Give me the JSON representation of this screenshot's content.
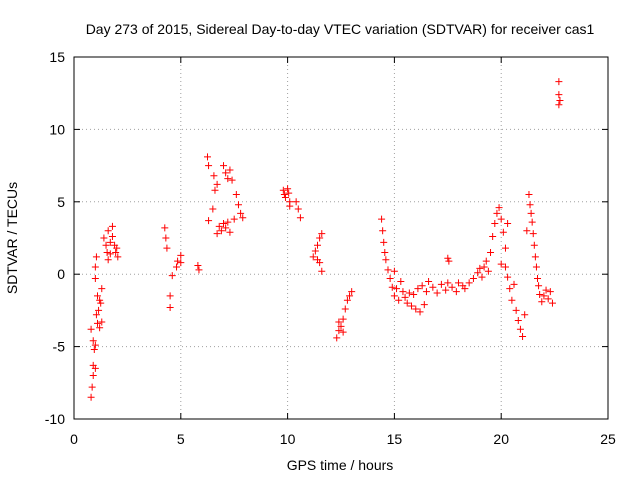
{
  "chart_data": {
    "type": "scatter",
    "title": "Day 273 of 2015, Sidereal Day-to-day VTEC variation (SDTVAR) for receiver cas1",
    "xlabel": "GPS time / hours",
    "ylabel": "SDTVAR / TECUs",
    "xlim": [
      0,
      25
    ],
    "ylim": [
      -10,
      15
    ],
    "xticks": [
      0,
      5,
      10,
      15,
      20,
      25
    ],
    "yticks": [
      -10,
      -5,
      0,
      5,
      10,
      15
    ],
    "xtick_labels": [
      "0",
      "5",
      "10",
      "15",
      "20",
      "25"
    ],
    "ytick_labels": [
      "-10",
      "-5",
      "0",
      "5",
      "10",
      "15"
    ],
    "grid": true,
    "marker": "+",
    "series": [
      {
        "name": "SDTVAR",
        "color": "#ff0000",
        "points": [
          [
            0.8,
            -3.8
          ],
          [
            0.8,
            -8.5
          ],
          [
            0.85,
            -7.8
          ],
          [
            0.9,
            -7.0
          ],
          [
            0.9,
            -6.3
          ],
          [
            0.95,
            -5.2
          ],
          [
            0.9,
            -4.6
          ],
          [
            1.0,
            -6.5
          ],
          [
            1.0,
            -4.9
          ],
          [
            1.0,
            0.5
          ],
          [
            1.0,
            -0.3
          ],
          [
            1.05,
            1.2
          ],
          [
            1.05,
            -2.8
          ],
          [
            1.1,
            -1.5
          ],
          [
            1.1,
            -3.4
          ],
          [
            1.15,
            -2.5
          ],
          [
            1.2,
            -1.8
          ],
          [
            1.2,
            -3.7
          ],
          [
            1.25,
            -2.0
          ],
          [
            1.3,
            -1.0
          ],
          [
            1.3,
            -3.3
          ],
          [
            1.4,
            2.5
          ],
          [
            1.5,
            2.0
          ],
          [
            1.55,
            1.5
          ],
          [
            1.6,
            1.0
          ],
          [
            1.6,
            3.0
          ],
          [
            1.7,
            2.2
          ],
          [
            1.7,
            1.4
          ],
          [
            1.8,
            3.3
          ],
          [
            1.8,
            2.6
          ],
          [
            1.9,
            2.0
          ],
          [
            1.95,
            1.5
          ],
          [
            2.0,
            1.8
          ],
          [
            2.05,
            1.2
          ],
          [
            4.25,
            3.2
          ],
          [
            4.3,
            2.5
          ],
          [
            4.35,
            1.8
          ],
          [
            4.5,
            -1.5
          ],
          [
            4.5,
            -2.3
          ],
          [
            4.6,
            -0.1
          ],
          [
            4.8,
            0.5
          ],
          [
            4.85,
            0.9
          ],
          [
            5.0,
            1.3
          ],
          [
            5.0,
            0.8
          ],
          [
            5.8,
            0.6
          ],
          [
            5.85,
            0.3
          ],
          [
            6.25,
            8.1
          ],
          [
            6.3,
            7.5
          ],
          [
            6.3,
            3.7
          ],
          [
            6.5,
            4.5
          ],
          [
            6.55,
            6.8
          ],
          [
            6.6,
            5.8
          ],
          [
            6.7,
            6.2
          ],
          [
            6.7,
            2.8
          ],
          [
            6.8,
            3.3
          ],
          [
            6.9,
            3.0
          ],
          [
            7.0,
            3.5
          ],
          [
            7.0,
            7.5
          ],
          [
            7.1,
            7.0
          ],
          [
            7.1,
            3.2
          ],
          [
            7.2,
            6.6
          ],
          [
            7.2,
            3.6
          ],
          [
            7.3,
            7.2
          ],
          [
            7.3,
            2.9
          ],
          [
            7.4,
            6.5
          ],
          [
            7.5,
            3.8
          ],
          [
            7.6,
            5.5
          ],
          [
            7.7,
            4.8
          ],
          [
            7.8,
            4.2
          ],
          [
            7.9,
            3.9
          ],
          [
            9.8,
            5.8
          ],
          [
            9.85,
            5.5
          ],
          [
            9.9,
            5.3
          ],
          [
            10.0,
            5.9
          ],
          [
            10.05,
            5.6
          ],
          [
            10.1,
            5.0
          ],
          [
            10.1,
            4.7
          ],
          [
            10.4,
            5.0
          ],
          [
            10.5,
            4.5
          ],
          [
            10.6,
            3.9
          ],
          [
            11.2,
            1.2
          ],
          [
            11.3,
            1.6
          ],
          [
            11.4,
            2.0
          ],
          [
            11.4,
            1.0
          ],
          [
            11.5,
            2.5
          ],
          [
            11.5,
            0.8
          ],
          [
            11.6,
            2.8
          ],
          [
            11.6,
            0.2
          ],
          [
            12.3,
            -4.4
          ],
          [
            12.4,
            -3.9
          ],
          [
            12.4,
            -3.3
          ],
          [
            12.5,
            -3.6
          ],
          [
            12.6,
            -4.0
          ],
          [
            12.6,
            -3.1
          ],
          [
            12.7,
            -2.4
          ],
          [
            12.8,
            -1.8
          ],
          [
            12.9,
            -1.5
          ],
          [
            13.0,
            -1.2
          ],
          [
            14.4,
            3.8
          ],
          [
            14.45,
            3.0
          ],
          [
            14.5,
            2.2
          ],
          [
            14.55,
            1.5
          ],
          [
            14.6,
            1.0
          ],
          [
            14.7,
            0.3
          ],
          [
            14.8,
            -0.3
          ],
          [
            14.9,
            -0.9
          ],
          [
            15.0,
            -1.5
          ],
          [
            15.0,
            0.2
          ],
          [
            15.1,
            -1.0
          ],
          [
            15.2,
            -1.8
          ],
          [
            15.3,
            -0.5
          ],
          [
            15.4,
            -1.2
          ],
          [
            15.5,
            -1.6
          ],
          [
            15.6,
            -2.0
          ],
          [
            15.7,
            -1.3
          ],
          [
            15.8,
            -2.2
          ],
          [
            15.9,
            -1.4
          ],
          [
            16.0,
            -2.4
          ],
          [
            16.1,
            -1.0
          ],
          [
            16.2,
            -2.6
          ],
          [
            16.3,
            -0.8
          ],
          [
            16.4,
            -2.1
          ],
          [
            16.5,
            -1.2
          ],
          [
            16.6,
            -0.5
          ],
          [
            16.8,
            -0.9
          ],
          [
            17.0,
            -1.3
          ],
          [
            17.2,
            -0.7
          ],
          [
            17.4,
            -1.1
          ],
          [
            17.5,
            -0.6
          ],
          [
            17.7,
            -0.9
          ],
          [
            17.9,
            -1.2
          ],
          [
            18.0,
            -0.6
          ],
          [
            18.2,
            -0.8
          ],
          [
            18.3,
            -1.0
          ],
          [
            18.5,
            -0.6
          ],
          [
            17.5,
            1.1
          ],
          [
            17.55,
            0.9
          ],
          [
            18.7,
            -0.3
          ],
          [
            18.9,
            0.1
          ],
          [
            19.0,
            0.4
          ],
          [
            19.1,
            -0.2
          ],
          [
            19.2,
            0.5
          ],
          [
            19.3,
            0.9
          ],
          [
            19.4,
            0.2
          ],
          [
            19.5,
            1.5
          ],
          [
            19.6,
            2.6
          ],
          [
            19.7,
            3.5
          ],
          [
            19.8,
            4.2
          ],
          [
            19.9,
            4.6
          ],
          [
            20.0,
            3.8
          ],
          [
            20.0,
            0.7
          ],
          [
            20.1,
            2.9
          ],
          [
            20.2,
            1.8
          ],
          [
            20.2,
            0.5
          ],
          [
            20.3,
            3.5
          ],
          [
            20.3,
            -0.2
          ],
          [
            20.4,
            -1.0
          ],
          [
            20.5,
            -1.8
          ],
          [
            20.6,
            -0.7
          ],
          [
            20.7,
            -2.5
          ],
          [
            20.8,
            -3.2
          ],
          [
            20.9,
            -3.8
          ],
          [
            21.0,
            -4.3
          ],
          [
            21.1,
            -2.8
          ],
          [
            21.2,
            3.0
          ],
          [
            21.3,
            5.5
          ],
          [
            21.35,
            4.8
          ],
          [
            21.4,
            4.2
          ],
          [
            21.45,
            3.6
          ],
          [
            21.5,
            2.8
          ],
          [
            21.55,
            2.0
          ],
          [
            21.6,
            1.2
          ],
          [
            21.65,
            0.5
          ],
          [
            21.7,
            -0.3
          ],
          [
            21.75,
            -0.8
          ],
          [
            21.8,
            -1.4
          ],
          [
            21.9,
            -1.9
          ],
          [
            22.0,
            -1.5
          ],
          [
            22.1,
            -1.1
          ],
          [
            22.2,
            -1.7
          ],
          [
            22.3,
            -1.2
          ],
          [
            22.4,
            -2.0
          ],
          [
            22.7,
            13.3
          ],
          [
            22.7,
            12.4
          ],
          [
            22.7,
            11.7
          ],
          [
            22.75,
            12.0
          ]
        ]
      }
    ]
  }
}
